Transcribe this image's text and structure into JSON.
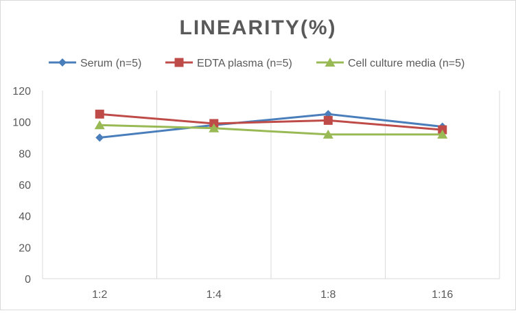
{
  "chart_data": {
    "type": "line",
    "title": "LINEARITY(%)",
    "xlabel": "",
    "ylabel": "",
    "categories": [
      "1:2",
      "1:4",
      "1:8",
      "1:16"
    ],
    "ylim": [
      0,
      120
    ],
    "yticks": [
      0,
      20,
      40,
      60,
      80,
      100,
      120
    ],
    "grid": "vertical",
    "legend_position": "top",
    "series": [
      {
        "name": "Serum (n=5)",
        "values": [
          90,
          98,
          105,
          97
        ],
        "color": "#4a7ebb",
        "marker": "diamond"
      },
      {
        "name": "EDTA plasma (n=5)",
        "values": [
          105,
          99,
          101,
          95
        ],
        "color": "#be4b48",
        "marker": "square"
      },
      {
        "name": "Cell culture media (n=5)",
        "values": [
          98,
          96,
          92,
          92
        ],
        "color": "#98b954",
        "marker": "triangle"
      }
    ]
  }
}
